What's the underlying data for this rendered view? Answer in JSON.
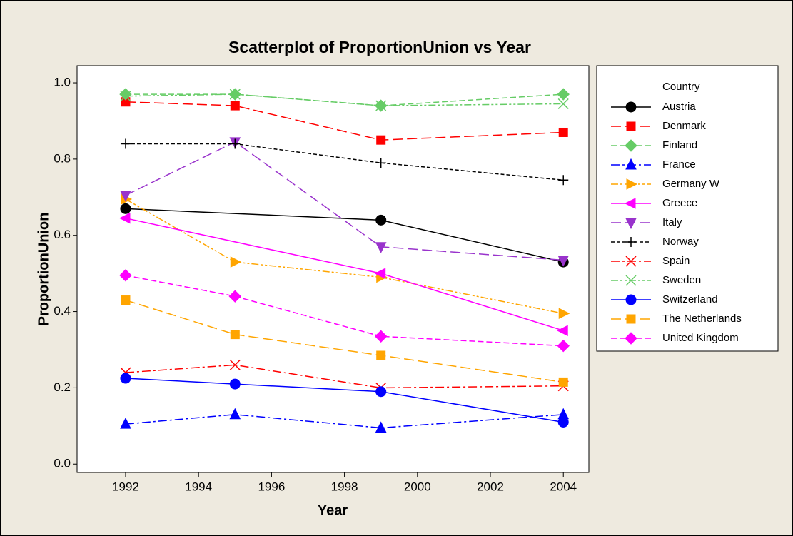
{
  "chart_data": {
    "type": "scatter",
    "title": "Scatterplot of ProportionUnion vs Year",
    "x_label": "Year",
    "y_label": "ProportionUnion",
    "legend_title": "Country",
    "legend": "right",
    "x": [
      1992,
      1995,
      1999,
      2004
    ],
    "xlim": [
      1990.67,
      2004.7
    ],
    "xticks": [
      1992,
      1994,
      1996,
      1998,
      2000,
      2002,
      2004
    ],
    "ylim": [
      -0.022,
      1.045
    ],
    "yticks": [
      {
        "value": 0,
        "label": "0.0"
      },
      0.2,
      0.4,
      0.6,
      0.8,
      {
        "value": 1,
        "label": "1.0"
      }
    ],
    "series": [
      {
        "name": "Austria",
        "color": "#000000",
        "marker": "circle",
        "dash": "solid",
        "x": [
          1992,
          1999,
          2004
        ],
        "values": [
          0.67,
          0.64,
          0.53
        ]
      },
      {
        "name": "Denmark",
        "color": "#ff0000",
        "marker": "square",
        "dash": "long-dash",
        "values": [
          0.95,
          0.94,
          0.85,
          0.87
        ]
      },
      {
        "name": "Finland",
        "color": "#66cc66",
        "marker": "diamond",
        "dash": "dash",
        "values": [
          0.97,
          0.97,
          0.94,
          0.97
        ]
      },
      {
        "name": "France",
        "color": "#0000ff",
        "marker": "triangle-up",
        "dash": "dash-dot",
        "values": [
          0.105,
          0.13,
          0.095,
          0.13
        ]
      },
      {
        "name": "Germany W",
        "color": "#ffa500",
        "marker": "triangle-right",
        "dash": "dash-dot-dot",
        "values": [
          0.695,
          0.53,
          0.49,
          0.395
        ]
      },
      {
        "name": "Greece",
        "color": "#ff00ff",
        "marker": "triangle-left",
        "dash": "solid",
        "x": [
          1992,
          1999,
          2004
        ],
        "values": [
          0.645,
          0.5,
          0.35
        ]
      },
      {
        "name": "Italy",
        "color": "#9933cc",
        "marker": "triangle-down",
        "dash": "long-dash",
        "values": [
          0.705,
          0.845,
          0.57,
          0.535
        ]
      },
      {
        "name": "Norway",
        "color": "#000000",
        "marker": "plus",
        "dash": "short-dash",
        "values": [
          0.84,
          0.84,
          0.79,
          0.745
        ]
      },
      {
        "name": "Spain",
        "color": "#ff0000",
        "marker": "cross",
        "dash": "dash-dot",
        "values": [
          0.24,
          0.26,
          0.2,
          0.205
        ]
      },
      {
        "name": "Sweden",
        "color": "#66cc66",
        "marker": "cross",
        "dash": "dash-dot-dot",
        "values": [
          0.965,
          0.97,
          0.94,
          0.945
        ]
      },
      {
        "name": "Switzerland",
        "color": "#0000ff",
        "marker": "circle",
        "dash": "solid",
        "values": [
          0.225,
          0.21,
          0.19,
          0.11
        ]
      },
      {
        "name": "The Netherlands",
        "color": "#ffa500",
        "marker": "square",
        "dash": "long-dash",
        "values": [
          0.43,
          0.34,
          0.285,
          0.215
        ]
      },
      {
        "name": "United Kingdom",
        "color": "#ff00ff",
        "marker": "diamond",
        "dash": "dash",
        "values": [
          0.495,
          0.44,
          0.335,
          0.31
        ]
      }
    ]
  }
}
